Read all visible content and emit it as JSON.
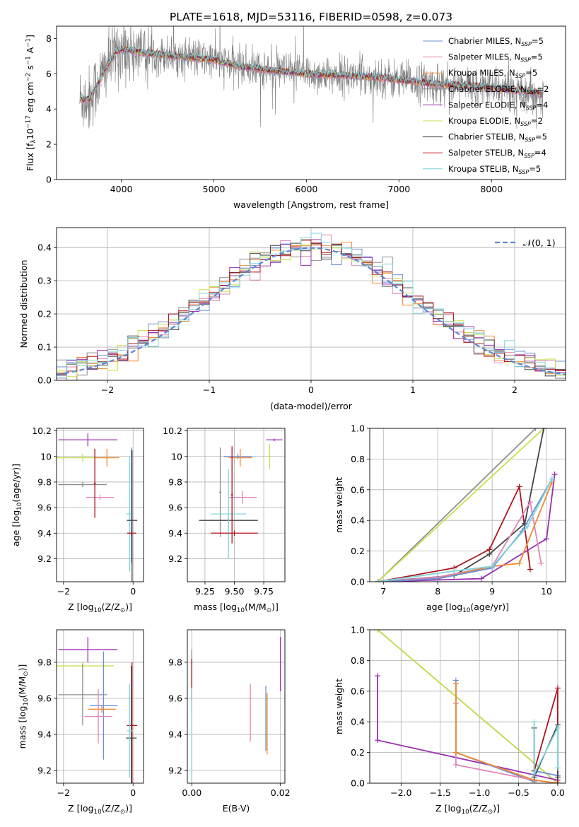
{
  "figure_title": "PLATE=1618, MJD=53116, FIBERID=0598, z=0.073",
  "colors": {
    "Chabrier MILES": "#6a8fd8",
    "Salpeter MILES": "#e085b8",
    "Kroupa MILES": "#f08a30",
    "Chabrier ELODIE": "#8f8f8f",
    "Salpeter ELODIE": "#9a2fb0",
    "Kroupa ELODIE": "#c8e04a",
    "Chabrier STELIB": "#444444",
    "Salpeter STELIB": "#b0141e",
    "Kroupa STELIB": "#7ed6dc",
    "data": "#808080",
    "normal": "#5b86d6",
    "grid": "#b0b0b0"
  },
  "chart_data": [
    {
      "type": "line",
      "id": "spectrum",
      "title": "",
      "xlabel": "wavelength [Angstrom, rest frame]",
      "ylabel": "Flux [f",
      "ylabel_parts": [
        "Flux [f",
        "λ",
        "10",
        "−17",
        " erg cm",
        "−2",
        " s",
        "−1",
        " A",
        "−1",
        "]"
      ],
      "xlim": [
        3300,
        8800
      ],
      "ylim": [
        0,
        8.7
      ],
      "xticks": [
        4000,
        5000,
        6000,
        7000,
        8000
      ],
      "yticks": [
        0,
        2,
        4,
        6,
        8
      ],
      "grid": false,
      "legend_placement": "right",
      "legend": [
        {
          "name": "Chabrier MILES",
          "nssp": "5"
        },
        {
          "name": "Salpeter MILES",
          "nssp": "5"
        },
        {
          "name": "Kroupa MILES",
          "nssp": "5"
        },
        {
          "name": "Chabrier ELODIE",
          "nssp": "2"
        },
        {
          "name": "Salpeter ELODIE",
          "nssp": "4"
        },
        {
          "name": "Kroupa ELODIE",
          "nssp": "2"
        },
        {
          "name": "Chabrier STELIB",
          "nssp": "5"
        },
        {
          "name": "Salpeter STELIB",
          "nssp": "4"
        },
        {
          "name": "Kroupa STELIB",
          "nssp": "5"
        }
      ],
      "legend_suffix": ", N",
      "legend_sub": "SSP",
      "model_shape": {
        "x": [
          3550,
          3650,
          3750,
          3850,
          3950,
          4050,
          4200,
          4400,
          4600,
          4800,
          5000,
          5200,
          5400,
          5600,
          5800,
          6000,
          6200,
          6400,
          6600,
          6800,
          7000,
          7200,
          7400,
          7600,
          7800,
          8000,
          8200,
          8400,
          8560
        ],
        "y": [
          4.6,
          4.5,
          5.5,
          6.5,
          7.3,
          7.4,
          7.2,
          7.1,
          7.0,
          6.9,
          6.8,
          6.5,
          6.35,
          6.2,
          6.1,
          6.0,
          5.95,
          5.9,
          5.85,
          5.8,
          5.65,
          5.55,
          5.4,
          5.35,
          5.3,
          5.2,
          5.1,
          5.0,
          4.8
        ]
      }
    },
    {
      "type": "step",
      "id": "residual_histogram",
      "title": "",
      "xlabel": "(data-model)/error",
      "ylabel": "Normed distribution",
      "xlim": [
        -2.5,
        2.5
      ],
      "ylim": [
        0,
        0.46
      ],
      "xticks": [
        -2,
        -1,
        0,
        1,
        2
      ],
      "yticks": [
        0.0,
        0.1,
        0.2,
        0.3,
        0.4
      ],
      "ytick_labels": [
        "0.0",
        "0.1",
        "0.2",
        "0.3",
        "0.4"
      ],
      "grid": true,
      "legend_placement": "top-right",
      "normal_label": "𝒩(0, 1)",
      "bin_width": 0.1
    },
    {
      "type": "errorbar",
      "id": "age_vs_Z",
      "xlabel": "Z [log",
      "xlabel_parts": [
        "Z [log",
        "10",
        "(Z/Z",
        "⊙",
        ")]"
      ],
      "ylabel_parts": [
        "age  [log",
        "10",
        "(age/yr)]"
      ],
      "xlim": [
        -2.2,
        0.3
      ],
      "ylim": [
        9.02,
        10.22
      ],
      "xticks": [
        -2,
        0
      ],
      "yticks": [
        9.2,
        9.4,
        9.6,
        9.8,
        10.0,
        10.2
      ],
      "grid": true,
      "points": [
        {
          "series": "Salpeter ELODIE",
          "x": -1.3,
          "xerr": 0.85,
          "y": 10.13,
          "yerr": 0.05
        },
        {
          "series": "Kroupa ELODIE",
          "x": -1.45,
          "xerr": 0.9,
          "y": 9.99,
          "yerr": 0.03
        },
        {
          "series": "Kroupa MILES",
          "x": -0.75,
          "xerr": 0.35,
          "y": 9.99,
          "yerr": 0.07
        },
        {
          "series": "Chabrier ELODIE",
          "x": -1.45,
          "xerr": 0.7,
          "y": 9.78,
          "yerr": 0.02
        },
        {
          "series": "Salpeter MILES",
          "x": -0.95,
          "xerr": 0.4,
          "y": 9.68,
          "yerr": 0.02
        },
        {
          "series": "Salpeter STELIB",
          "x": -1.1,
          "xerr": 0.03,
          "y": 9.79,
          "yerr": 0.27
        },
        {
          "series": "Chabrier MILES",
          "x": -0.05,
          "xerr": 0.01,
          "y": 9.62,
          "yerr": 0.45
        },
        {
          "series": "Kroupa STELIB",
          "x": -0.1,
          "xerr": 0.1,
          "y": 9.55,
          "yerr": 0.45
        },
        {
          "series": "Chabrier STELIB",
          "x": -0.03,
          "xerr": 0.15,
          "y": 9.5,
          "yerr": 0.55
        },
        {
          "series": "Salpeter STELIB",
          "x": -0.04,
          "xerr": 0.13,
          "y": 9.4,
          "yerr": 0.02
        }
      ]
    },
    {
      "type": "errorbar",
      "id": "age_vs_mass",
      "xlabel_parts": [
        "mass [log",
        "10",
        "(M/M",
        "⊙",
        ")]"
      ],
      "xlim": [
        9.1,
        9.93
      ],
      "ylim": [
        9.02,
        10.22
      ],
      "xticks": [
        9.25,
        9.5,
        9.75
      ],
      "xtick_labels": [
        "9.25",
        "9.50",
        "9.75"
      ],
      "yticks": [
        9.2,
        9.4,
        9.6,
        9.8,
        10.0,
        10.2
      ],
      "grid": true,
      "points": [
        {
          "series": "Salpeter ELODIE",
          "x": 9.84,
          "xerr": 0.07,
          "y": 10.13,
          "yerr": 0.01
        },
        {
          "series": "Chabrier MILES",
          "x": 9.53,
          "xerr": 0.12,
          "y": 10.0,
          "yerr": 0.02
        },
        {
          "series": "Kroupa MILES",
          "x": 9.55,
          "xerr": 0.1,
          "y": 9.99,
          "yerr": 0.07
        },
        {
          "series": "Kroupa ELODIE",
          "x": 9.8,
          "xerr": 0.01,
          "y": 10.0,
          "yerr": 0.1
        },
        {
          "series": "Chabrier ELODIE",
          "x": 9.38,
          "xerr": 0.01,
          "y": 9.72,
          "yerr": 0.35
        },
        {
          "series": "Salpeter MILES",
          "x": 9.57,
          "xerr": 0.12,
          "y": 9.68,
          "yerr": 0.05
        },
        {
          "series": "Chabrier STELIB",
          "x": 9.45,
          "xerr": 0.25,
          "y": 9.5,
          "yerr": 0.02
        },
        {
          "series": "Kroupa STELIB",
          "x": 9.45,
          "xerr": 0.15,
          "y": 9.55,
          "yerr": 0.35
        },
        {
          "series": "Salpeter STELIB",
          "x": 9.5,
          "xerr": 0.2,
          "y": 9.4,
          "yerr": 0.02
        },
        {
          "series": "Salpeter STELIB",
          "x": 9.48,
          "xerr": 0.01,
          "y": 9.7,
          "yerr": 0.38
        }
      ]
    },
    {
      "type": "line",
      "id": "weight_vs_age",
      "xlabel_parts": [
        "age  [log",
        "10",
        "(age/yr)]"
      ],
      "ylabel": "mass weight",
      "xlim": [
        6.75,
        10.35
      ],
      "ylim": [
        0,
        1
      ],
      "xticks": [
        7,
        8,
        9,
        10
      ],
      "yticks": [
        0.0,
        0.2,
        0.4,
        0.6,
        0.8,
        1.0
      ],
      "ytick_labels": [
        "0.0",
        "0.2",
        "0.4",
        "0.6",
        "0.8",
        "1.0"
      ],
      "grid": true,
      "series": [
        {
          "name": "Chabrier ELODIE",
          "x": [
            6.9,
            9.8
          ],
          "y": [
            0.0,
            1.0
          ]
        },
        {
          "name": "Kroupa ELODIE",
          "x": [
            6.9,
            9.95
          ],
          "y": [
            0.0,
            1.0
          ]
        },
        {
          "name": "Salpeter STELIB",
          "x": [
            6.9,
            8.3,
            8.95,
            9.5,
            9.7
          ],
          "y": [
            0.0,
            0.09,
            0.21,
            0.62,
            0.08
          ]
        },
        {
          "name": "Chabrier STELIB",
          "x": [
            6.9,
            8.3,
            8.95,
            9.6,
            9.95
          ],
          "y": [
            0.0,
            0.04,
            0.18,
            0.38,
            1.0
          ]
        },
        {
          "name": "Salpeter ELODIE",
          "x": [
            6.9,
            8.8,
            10.0,
            10.15
          ],
          "y": [
            0.0,
            0.02,
            0.28,
            0.7
          ]
        },
        {
          "name": "Salpeter MILES",
          "x": [
            6.9,
            8.0,
            9.0,
            9.7,
            9.9
          ],
          "y": [
            0.0,
            0.03,
            0.1,
            0.52,
            0.12
          ]
        },
        {
          "name": "Kroupa MILES",
          "x": [
            6.9,
            8.0,
            9.0,
            9.5,
            10.1
          ],
          "y": [
            0.0,
            0.02,
            0.1,
            0.12,
            0.65
          ]
        },
        {
          "name": "Chabrier MILES",
          "x": [
            6.9,
            8.0,
            9.0,
            9.55,
            10.1
          ],
          "y": [
            0.0,
            0.02,
            0.09,
            0.33,
            0.67
          ]
        },
        {
          "name": "Kroupa STELIB",
          "x": [
            6.9,
            8.3,
            9.0,
            9.65,
            10.1
          ],
          "y": [
            0.0,
            0.07,
            0.1,
            0.36,
            0.67
          ]
        }
      ]
    },
    {
      "type": "errorbar",
      "id": "mass_vs_Z",
      "xlabel_parts": [
        "Z [log",
        "10",
        "(Z/Z",
        "⊙",
        ")]"
      ],
      "ylabel_parts": [
        "mass [log",
        "10",
        "(M/M",
        "⊙",
        ")]"
      ],
      "xlim": [
        -2.2,
        0.3
      ],
      "ylim": [
        9.13,
        9.98
      ],
      "xticks": [
        -2,
        0
      ],
      "yticks": [
        9.2,
        9.4,
        9.6,
        9.8
      ],
      "grid": true,
      "points": [
        {
          "series": "Salpeter ELODIE",
          "x": -1.3,
          "xerr": 0.85,
          "y": 9.87,
          "yerr": 0.07
        },
        {
          "series": "Kroupa ELODIE",
          "x": -1.45,
          "xerr": 0.9,
          "y": 9.78,
          "yerr": 0.02
        },
        {
          "series": "Chabrier ELODIE",
          "x": -1.45,
          "xerr": 0.7,
          "y": 9.62,
          "yerr": 0.17
        },
        {
          "series": "Chabrier MILES",
          "x": -0.85,
          "xerr": 0.4,
          "y": 9.56,
          "yerr": 0.3
        },
        {
          "series": "Kroupa MILES",
          "x": -0.9,
          "xerr": 0.4,
          "y": 9.54,
          "yerr": 0.02
        },
        {
          "series": "Salpeter MILES",
          "x": -1.0,
          "xerr": 0.4,
          "y": 9.5,
          "yerr": 0.15
        },
        {
          "series": "Salpeter STELIB",
          "x": -0.03,
          "xerr": 0.15,
          "y": 9.45,
          "yerr": 0.35
        },
        {
          "series": "Chabrier STELIB",
          "x": -0.05,
          "xerr": 0.15,
          "y": 9.38,
          "yerr": 0.4
        },
        {
          "series": "Kroupa STELIB",
          "x": -0.1,
          "xerr": 0.08,
          "y": 9.42,
          "yerr": 0.26
        }
      ]
    },
    {
      "type": "errorbar",
      "id": "mass_vs_EBV",
      "xlabel": "E(B-V)",
      "xlim": [
        -0.001,
        0.021
      ],
      "ylim": [
        9.13,
        9.98
      ],
      "xticks": [
        0.0,
        0.02
      ],
      "xtick_labels": [
        "0.00",
        "0.02"
      ],
      "yticks": [
        9.2,
        9.4,
        9.6,
        9.8
      ],
      "grid": true,
      "points": [
        {
          "series": "Chabrier ELODIE",
          "x": 0.0,
          "xerr": 0,
          "y": 9.7,
          "yerr": 0.17
        },
        {
          "series": "Salpeter STELIB",
          "x": 0.0,
          "xerr": 0,
          "y": 9.7,
          "yerr": 0.12
        },
        {
          "series": "Kroupa STELIB",
          "x": 0.0,
          "xerr": 0,
          "y": 9.4,
          "yerr": 0.26
        },
        {
          "series": "Salpeter MILES",
          "x": 0.0132,
          "xerr": 0,
          "y": 9.52,
          "yerr": 0.16
        },
        {
          "series": "Chabrier MILES",
          "x": 0.0167,
          "xerr": 0,
          "y": 9.49,
          "yerr": 0.18
        },
        {
          "series": "Kroupa MILES",
          "x": 0.017,
          "xerr": 0,
          "y": 9.46,
          "yerr": 0.17
        },
        {
          "series": "Salpeter ELODIE",
          "x": 0.02,
          "xerr": 0,
          "y": 9.79,
          "yerr": 0.15
        }
      ]
    },
    {
      "type": "line",
      "id": "weight_vs_Z",
      "xlabel_parts": [
        "Z [log",
        "10",
        "(Z/Z",
        "⊙",
        ")]"
      ],
      "ylabel": "mass weight",
      "xlim": [
        -2.4,
        0.1
      ],
      "ylim": [
        0,
        1
      ],
      "xticks": [
        -2.0,
        -1.5,
        -1.0,
        -0.5,
        0.0
      ],
      "xtick_labels": [
        "−2.0",
        "−1.5",
        "−1.0",
        "−0.5",
        "0.0"
      ],
      "yticks": [
        0.0,
        0.2,
        0.4,
        0.6,
        0.8,
        1.0
      ],
      "ytick_labels": [
        "0.0",
        "0.2",
        "0.4",
        "0.6",
        "0.8",
        "1.0"
      ],
      "grid": true,
      "series": [
        {
          "name": "Chabrier ELODIE",
          "x": [
            -2.3,
            0.0
          ],
          "y": [
            1.0,
            0.0
          ]
        },
        {
          "name": "Kroupa ELODIE",
          "x": [
            -2.3,
            0.0
          ],
          "y": [
            1.0,
            0.0
          ]
        },
        {
          "name": "Salpeter ELODIE",
          "x": [
            -2.3,
            -2.3,
            0.0
          ],
          "y": [
            0.7,
            0.28,
            0.02
          ]
        },
        {
          "name": "Chabrier MILES",
          "x": [
            -1.3,
            -1.3,
            -0.3,
            -0.3,
            0.0
          ],
          "y": [
            0.67,
            0.2,
            0.01,
            0.08,
            0.05
          ]
        },
        {
          "name": "Salpeter MILES",
          "x": [
            -1.3,
            -1.3,
            -0.3,
            0.0
          ],
          "y": [
            0.52,
            0.12,
            0.02,
            0.0
          ]
        },
        {
          "name": "Kroupa MILES",
          "x": [
            -1.3,
            -1.3,
            -0.3,
            0.0
          ],
          "y": [
            0.65,
            0.2,
            0.02,
            0.0
          ]
        },
        {
          "name": "Salpeter STELIB",
          "x": [
            -0.3,
            0.0,
            0.0
          ],
          "y": [
            0.08,
            0.62,
            0.0
          ]
        },
        {
          "name": "Chabrier STELIB",
          "x": [
            -0.3,
            -0.3,
            0.0,
            0.0
          ],
          "y": [
            0.36,
            0.04,
            0.38,
            0.04
          ]
        },
        {
          "name": "Kroupa STELIB",
          "x": [
            -0.3,
            -0.3,
            0.0,
            0.0
          ],
          "y": [
            0.4,
            0.06,
            0.36,
            0.1
          ]
        }
      ]
    }
  ]
}
